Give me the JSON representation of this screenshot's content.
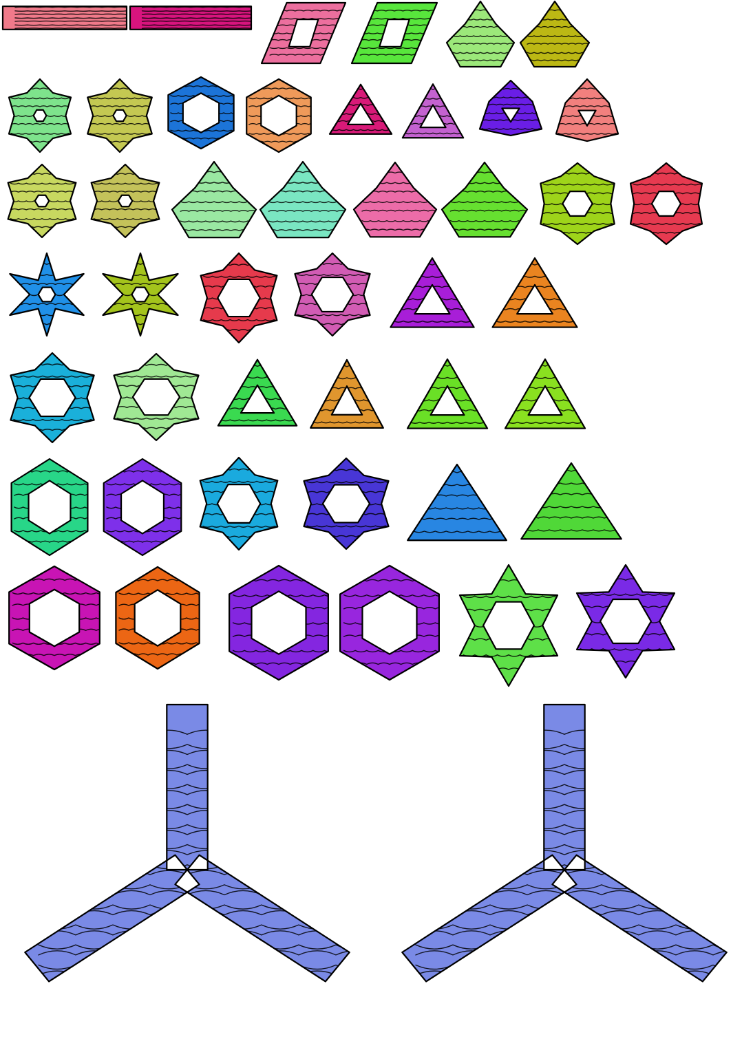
{
  "canvas": {
    "background": "#ffffff",
    "outline": "#000000"
  },
  "rows": [
    {
      "row": 1,
      "shapes": [
        {
          "type": "bar",
          "color": "#f07a8a"
        },
        {
          "type": "bar",
          "color": "#d8147e"
        },
        {
          "type": "rhombus",
          "color": "#ec6f9e"
        },
        {
          "type": "rhombus",
          "color": "#58e63c"
        },
        {
          "type": "tri-blob",
          "color": "#9ce87a"
        },
        {
          "type": "tri-blob",
          "color": "#bcb814"
        }
      ]
    },
    {
      "row": 2,
      "shapes": [
        {
          "type": "hex-star",
          "color": "#7ee38c"
        },
        {
          "type": "hex-star",
          "color": "#c4c852"
        },
        {
          "type": "hex-ring",
          "color": "#1c74d8"
        },
        {
          "type": "hex-ring",
          "color": "#ef9a5a"
        },
        {
          "type": "tri-frame",
          "color": "#d81a78"
        },
        {
          "type": "tri-frame",
          "color": "#c462d0"
        },
        {
          "type": "tri-pinwheel",
          "color": "#6a1ee6"
        },
        {
          "type": "tri-pinwheel",
          "color": "#f2807e"
        }
      ]
    },
    {
      "row": 3,
      "shapes": [
        {
          "type": "hex-star",
          "color": "#c8d860"
        },
        {
          "type": "hex-star",
          "color": "#c4c25a"
        },
        {
          "type": "tri-blob",
          "color": "#9ae8a2"
        },
        {
          "type": "tri-blob",
          "color": "#7ae6c2"
        },
        {
          "type": "tri-blob",
          "color": "#ec6ca8"
        },
        {
          "type": "tri-blob",
          "color": "#66e030"
        },
        {
          "type": "hex-snowflake",
          "color": "#9ed41a"
        },
        {
          "type": "hex-snowflake",
          "color": "#e63a50"
        }
      ]
    },
    {
      "row": 4,
      "shapes": [
        {
          "type": "six-arm",
          "color": "#2090e8"
        },
        {
          "type": "six-arm",
          "color": "#a4c41c"
        },
        {
          "type": "hex-ring-star",
          "color": "#e63a4c"
        },
        {
          "type": "hex-ring-star",
          "color": "#d25cb4"
        },
        {
          "type": "tri-frame",
          "color": "#a81ed8"
        },
        {
          "type": "tri-frame",
          "color": "#ea8420"
        }
      ]
    },
    {
      "row": 5,
      "shapes": [
        {
          "type": "hex-ring-star",
          "color": "#1ab0da"
        },
        {
          "type": "hex-ring-star",
          "color": "#a0e894"
        },
        {
          "type": "tri-frame",
          "color": "#3ada50"
        },
        {
          "type": "tri-frame",
          "color": "#e0962e"
        },
        {
          "type": "tri-frame",
          "color": "#6ae026"
        },
        {
          "type": "tri-frame",
          "color": "#8ae020"
        }
      ]
    },
    {
      "row": 6,
      "shapes": [
        {
          "type": "hex-ring",
          "color": "#28d688"
        },
        {
          "type": "hex-ring",
          "color": "#7e30ea"
        },
        {
          "type": "hex-ring-star",
          "color": "#1aaade"
        },
        {
          "type": "hex-ring-star",
          "color": "#4836d6"
        },
        {
          "type": "solid-tri",
          "color": "#2886e2"
        },
        {
          "type": "solid-tri",
          "color": "#50d838"
        }
      ]
    },
    {
      "row": 7,
      "shapes": [
        {
          "type": "hex-ring",
          "color": "#c814b4"
        },
        {
          "type": "hex-ring",
          "color": "#ec6614"
        },
        {
          "type": "hex-ring",
          "color": "#8426e0"
        },
        {
          "type": "hex-ring",
          "color": "#9826de"
        },
        {
          "type": "star-outline",
          "color": "#5ee048"
        },
        {
          "type": "star-outline",
          "color": "#7a2ae6"
        }
      ]
    },
    {
      "row": 8,
      "shapes": [
        {
          "type": "tripod",
          "color": "#7a8ae6"
        },
        {
          "type": "tripod",
          "color": "#7a8ae6"
        }
      ]
    }
  ]
}
